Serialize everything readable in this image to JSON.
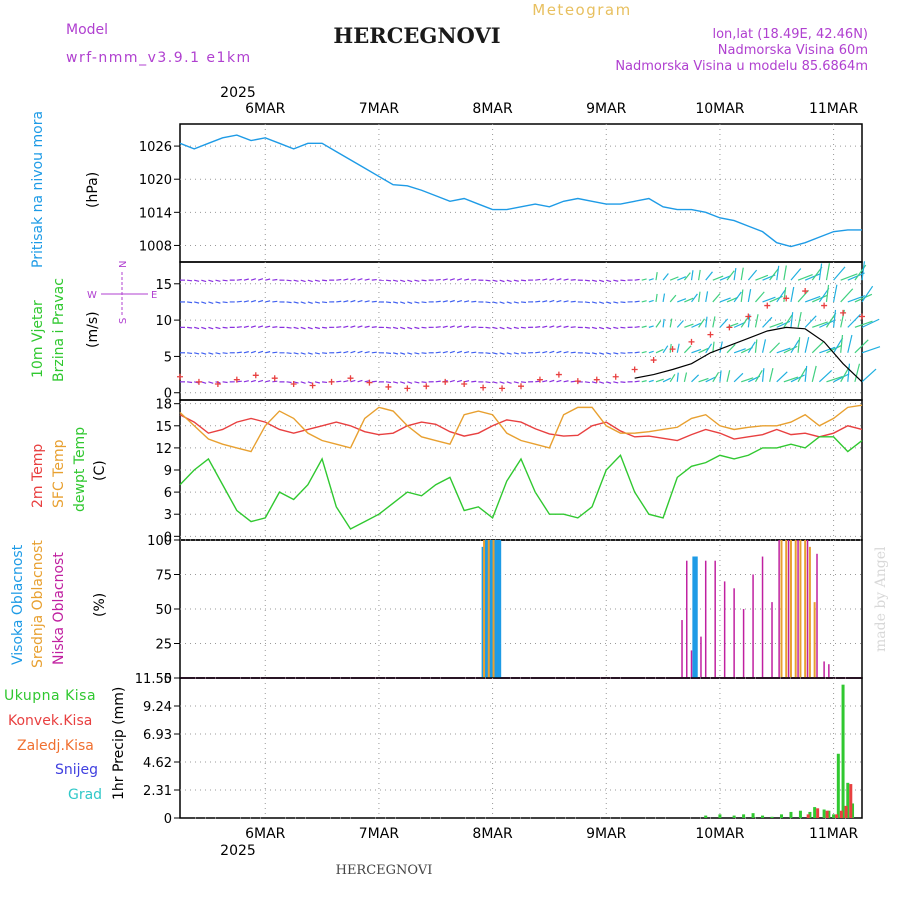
{
  "header": {
    "model_label": "Model",
    "model_name": "wrf-nmm_v3.9.1 e1km",
    "title": "HERCEGNOVI",
    "meteogram_label": "Meteogram",
    "lonlat": "lon,lat (18.49E, 42.46N)",
    "altitude": "Nadmorska Visina 60m",
    "model_altitude": "Nadmorska Visina u modelu 85.6864m",
    "footer_title": "HERCEGNOVI",
    "watermark": "made by Angel",
    "top_year": "2025",
    "bottom_year": "2025"
  },
  "days": [
    "6MAR",
    "7MAR",
    "8MAR",
    "9MAR",
    "10MAR",
    "11MAR"
  ],
  "colors": {
    "pressure": "#1e9be6",
    "temp2m": "#e84040",
    "sfc": "#e8a030",
    "dewpt": "#30c830",
    "high_cloud": "#1e9be6",
    "mid_cloud": "#e8a030",
    "low_cloud": "#c020a0",
    "total": "#30c830",
    "convective": "#e84040",
    "frozen": "#f07030",
    "snow": "#4040e0",
    "hail": "#30c8c8",
    "wind_label": "#30c830",
    "compass": "#b040d0"
  },
  "panels": {
    "pressure": {
      "label": "Pritisak na nivou mora",
      "unit": "(hPa)"
    },
    "wind": {
      "label1": "10m Vjetar",
      "label2": "Brzina i Pravac",
      "unit": "(m/s)",
      "compass_n": "N",
      "compass_s": "S",
      "compass_w": "W",
      "compass_e": "E"
    },
    "temperature": {
      "label1": "2m Temp",
      "label2": "SFC Temp",
      "label3": "dewpt Temp",
      "unit": "(C)"
    },
    "cloud": {
      "label1": "Visoka Oblacnost",
      "label2": "Srednja Oblacnost",
      "label3": "Niska Oblacnost",
      "unit": "(%)"
    },
    "precip": {
      "label1": "Ukupna Kisa",
      "label2": "Konvek.Kisa",
      "label3": "Zaledj.Kisa",
      "label4": "Snijeg",
      "label5": "Grad",
      "unit": "1hr Precip (mm)"
    }
  },
  "chart_data": [
    {
      "type": "line",
      "name": "pressure",
      "x_unit": "hours since 5MAR 18UTC",
      "xlim": [
        0,
        144
      ],
      "ylim": [
        1005,
        1030
      ],
      "yticks": [
        1008,
        1014,
        1020,
        1026
      ],
      "grid": true,
      "x": [
        0,
        3,
        6,
        9,
        12,
        15,
        18,
        21,
        24,
        27,
        30,
        33,
        36,
        39,
        42,
        45,
        48,
        51,
        54,
        57,
        60,
        63,
        66,
        69,
        72,
        75,
        78,
        81,
        84,
        87,
        90,
        93,
        96,
        99,
        102,
        105,
        108,
        111,
        114,
        117,
        120,
        123,
        126,
        129,
        132,
        135,
        138,
        141,
        144
      ],
      "values": [
        1026.5,
        1025.5,
        1026.5,
        1027.5,
        1028,
        1027,
        1027.5,
        1026.5,
        1025.5,
        1026.5,
        1026.5,
        1025,
        1023.5,
        1022,
        1020.5,
        1019,
        1018.8,
        1018,
        1017,
        1016,
        1016.5,
        1015.5,
        1014.5,
        1014.5,
        1015,
        1015.5,
        1015,
        1016,
        1016.5,
        1016,
        1015.5,
        1015.5,
        1016,
        1016.5,
        1015,
        1014.5,
        1014.5,
        1014,
        1013,
        1012.5,
        1011.5,
        1010.5,
        1008.5,
        1007.8,
        1008.5,
        1009.5,
        1010.5,
        1010.8,
        1010.8
      ]
    },
    {
      "type": "scatter",
      "name": "wind",
      "xlim": [
        0,
        144
      ],
      "ylim": [
        -1,
        18
      ],
      "yticks": [
        0,
        5,
        10,
        15
      ],
      "series": [
        {
          "name": "wind speed",
          "x": [
            0,
            4,
            8,
            12,
            16,
            20,
            24,
            28,
            32,
            36,
            40,
            44,
            48,
            52,
            56,
            60,
            64,
            68,
            72,
            76,
            80,
            84,
            88,
            92,
            96,
            100,
            104,
            108,
            112,
            116,
            120,
            124,
            128,
            132,
            136,
            140,
            144
          ],
          "values": [
            2.2,
            1.5,
            1.2,
            1.8,
            2.4,
            2.0,
            1.2,
            1.0,
            1.5,
            2.0,
            1.4,
            0.8,
            0.6,
            0.9,
            1.5,
            1.2,
            0.7,
            0.6,
            0.9,
            1.8,
            2.5,
            1.6,
            1.8,
            2.2,
            3.2,
            4.5,
            6.0,
            7.0,
            8.0,
            9.0,
            10.5,
            12.0,
            13.0,
            14.0,
            12.0,
            11.0,
            10.5
          ]
        },
        {
          "name": "gust",
          "x": [
            96,
            100,
            104,
            108,
            112,
            116,
            120,
            124,
            128,
            132,
            136,
            140,
            144
          ],
          "values": [
            2.0,
            2.5,
            3.2,
            4.0,
            5.5,
            6.5,
            7.5,
            8.5,
            9.0,
            8.8,
            7.0,
            4.0,
            1.5
          ]
        }
      ]
    },
    {
      "type": "line",
      "name": "temperature",
      "xlim": [
        0,
        144
      ],
      "ylim": [
        -0.5,
        18.5
      ],
      "yticks": [
        0,
        3,
        6,
        9,
        12,
        15,
        18
      ],
      "grid": true,
      "x": [
        0,
        3,
        6,
        9,
        12,
        15,
        18,
        21,
        24,
        27,
        30,
        33,
        36,
        39,
        42,
        45,
        48,
        51,
        54,
        57,
        60,
        63,
        66,
        69,
        72,
        75,
        78,
        81,
        84,
        87,
        90,
        93,
        96,
        99,
        102,
        105,
        108,
        111,
        114,
        117,
        120,
        123,
        126,
        129,
        132,
        135,
        138,
        141,
        144
      ],
      "series": [
        {
          "name": "2m Temp",
          "values": [
            16.5,
            15.5,
            14.0,
            14.5,
            15.5,
            16.0,
            15.5,
            14.5,
            14.0,
            14.5,
            15.0,
            15.5,
            15.0,
            14.2,
            13.8,
            14.0,
            15.0,
            15.5,
            15.2,
            14.2,
            13.6,
            14.0,
            15.0,
            15.8,
            15.5,
            14.6,
            13.9,
            13.6,
            13.7,
            15.0,
            15.5,
            14.3,
            13.5,
            13.6,
            13.3,
            13.0,
            13.8,
            14.5,
            14.0,
            13.2,
            13.5,
            13.8,
            14.5,
            13.8,
            14.0,
            13.5,
            14.0,
            15.0,
            14.5
          ]
        },
        {
          "name": "SFC Temp",
          "values": [
            16.8,
            15.0,
            13.2,
            12.5,
            12.0,
            11.5,
            15.0,
            17.0,
            16.0,
            14.0,
            13.0,
            12.5,
            12.0,
            16.0,
            17.5,
            17.0,
            15.0,
            13.5,
            13.0,
            12.5,
            16.5,
            17.0,
            16.5,
            14.0,
            13.0,
            12.5,
            12.0,
            16.5,
            17.5,
            17.5,
            15.0,
            14.0,
            14.0,
            14.2,
            14.5,
            14.8,
            16.0,
            16.5,
            15.0,
            14.5,
            14.8,
            15.0,
            15.0,
            15.5,
            16.5,
            15.0,
            16.0,
            17.5,
            17.8
          ]
        },
        {
          "name": "dewpt Temp",
          "values": [
            7.0,
            9.0,
            10.5,
            7.0,
            3.5,
            2.0,
            2.5,
            6.0,
            5.0,
            7.0,
            10.5,
            4.0,
            1.0,
            2.0,
            3.0,
            4.5,
            6.0,
            5.5,
            7.0,
            8.0,
            3.5,
            4.0,
            2.5,
            7.5,
            10.5,
            6.0,
            3.0,
            3.0,
            2.5,
            4.0,
            9.0,
            11.0,
            6.0,
            3.0,
            2.5,
            8.0,
            9.5,
            10.0,
            11.0,
            10.5,
            11.0,
            12.0,
            12.0,
            12.5,
            12.0,
            13.5,
            13.5,
            11.5,
            13.0
          ]
        }
      ]
    },
    {
      "type": "bar",
      "name": "cloud",
      "xlim": [
        0,
        144
      ],
      "ylim": [
        0,
        100
      ],
      "yticks": [
        0,
        25,
        50,
        75,
        100
      ],
      "grid": true,
      "series": [
        {
          "name": "Visoka Oblacnost",
          "x": [
            64,
            64.5,
            65,
            65.5,
            66,
            66.5,
            67,
            67.5,
            108.5,
            109
          ],
          "values": [
            95,
            100,
            100,
            100,
            100,
            100,
            100,
            100,
            88,
            88
          ]
        },
        {
          "name": "Srednja Oblacnost",
          "x": [
            64.2,
            65.2,
            66.2,
            127,
            128,
            129,
            130,
            131,
            132,
            133,
            134
          ],
          "values": [
            100,
            100,
            100,
            100,
            100,
            100,
            100,
            100,
            100,
            95,
            55
          ]
        },
        {
          "name": "Niska Oblacnost",
          "x": [
            106,
            107,
            108,
            110,
            111,
            113,
            115,
            117,
            119,
            121,
            123,
            125,
            126.5,
            128.5,
            130.5,
            132.5,
            134.5,
            136,
            137
          ],
          "values": [
            42,
            85,
            20,
            30,
            85,
            85,
            70,
            65,
            50,
            75,
            88,
            55,
            100,
            100,
            100,
            100,
            90,
            12,
            10
          ]
        }
      ]
    },
    {
      "type": "bar",
      "name": "precip",
      "xlim": [
        0,
        144
      ],
      "ylim": [
        0,
        11.55
      ],
      "yticks": [
        0,
        2.31,
        4.62,
        6.93,
        9.24,
        11.55
      ],
      "grid": true,
      "series": [
        {
          "name": "Ukupna Kisa",
          "x": [
            111,
            114,
            117,
            119,
            121,
            123,
            125,
            127,
            129,
            131,
            133,
            134,
            136,
            137,
            138,
            139,
            140,
            141,
            142
          ],
          "values": [
            0.2,
            0.3,
            0.2,
            0.3,
            0.4,
            0.2,
            0.1,
            0.3,
            0.5,
            0.6,
            0.5,
            0.9,
            0.7,
            0.6,
            0.3,
            5.3,
            11.0,
            2.9,
            1.2
          ]
        },
        {
          "name": "Konvek.Kisa",
          "x": [
            132,
            134,
            136,
            138,
            139,
            140,
            141
          ],
          "values": [
            0.3,
            0.8,
            0.6,
            0.3,
            0.6,
            1.0,
            2.8
          ]
        }
      ]
    }
  ]
}
